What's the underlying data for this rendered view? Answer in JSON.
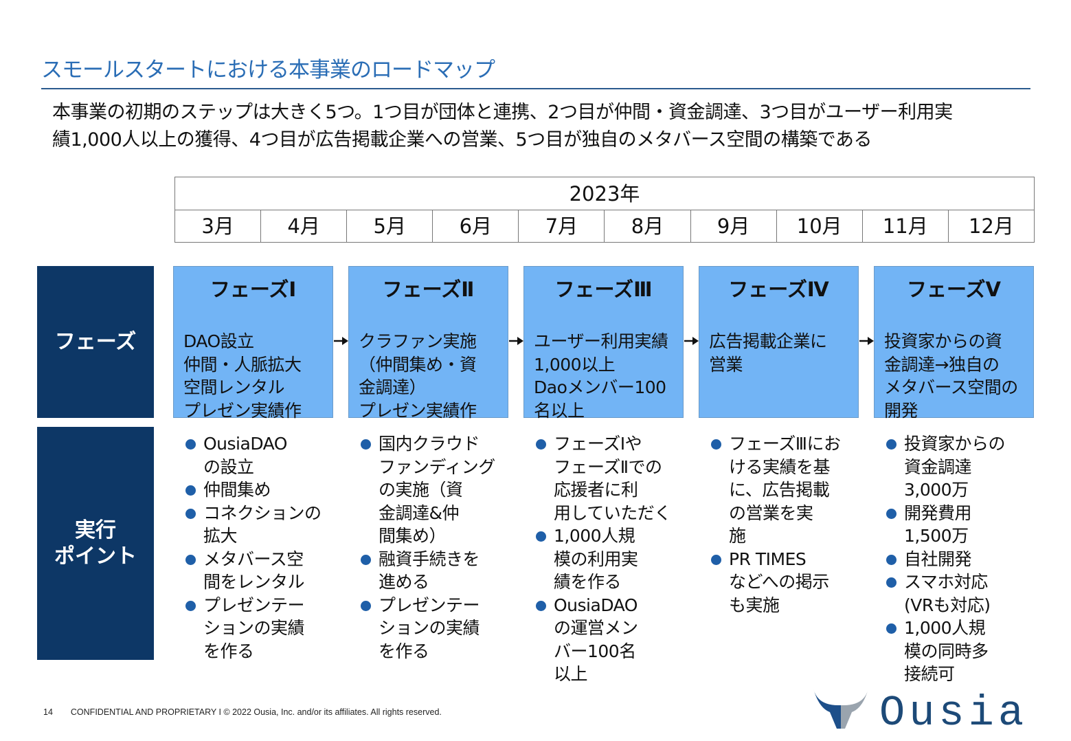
{
  "title": "スモールスタートにおける本事業のロードマップ",
  "intro": "本事業の初期のステップは大きく5つ。1つ目が団体と連携、2つ目が仲間・資金調達、3つ目がユーザー利用実\n績1,000人以上の獲得、4つ目が広告掲載企業への営業、5つ目が独自のメタバース空間の構築である",
  "timeline": {
    "year": "2023年",
    "months": [
      "3月",
      "4月",
      "5月",
      "6月",
      "7月",
      "8月",
      "9月",
      "10月",
      "11月",
      "12月"
    ]
  },
  "row_labels": {
    "phase": "フェーズ",
    "points": "実行\nポイント"
  },
  "phases": [
    {
      "name": "フェーズⅠ",
      "desc": "DAO設立\n仲間・人脈拡大\n空間レンタル\nプレゼン実績作",
      "points": [
        "OusiaDAO\nの設立",
        "仲間集め",
        "コネクションの\n拡大",
        "メタバース空\n間をレンタル",
        "プレゼンテー\nションの実績\nを作る"
      ]
    },
    {
      "name": "フェーズⅡ",
      "desc": "クラファン実施\n（仲間集め・資\n金調達）\nプレゼン実績作",
      "points": [
        "国内クラウド\nファンディング\nの実施（資\n金調達&仲\n間集め）",
        "融資手続きを\n進める",
        "プレゼンテー\nションの実績\nを作る"
      ]
    },
    {
      "name": "フェーズⅢ",
      "desc": "ユーザー利用実績\n1,000以上\nDaoメンバー100\n名以上",
      "points": [
        "フェーズⅠや\nフェーズⅡでの\n応援者に利\n用していただく",
        "1,000人規\n模の利用実\n績を作る",
        "OusiaDAO\nの運営メン\nバー100名\n以上"
      ]
    },
    {
      "name": "フェーズⅣ",
      "desc": "広告掲載企業に\n営業",
      "points": [
        "フェーズⅢにお\nける実績を基\nに、広告掲載\nの営業を実\n施",
        "PR TIMES\nなどへの掲示\nも実施"
      ]
    },
    {
      "name": "フェーズⅤ",
      "desc": "投資家からの資\n金調達→独自の\nメタバース空間の\n開発",
      "points": [
        "投資家からの\n資金調達\n3,000万",
        "開発費用\n1,500万",
        "自社開発",
        "スマホ対応\n(VRも対応)",
        "1,000人規\n模の同時多\n接続可"
      ]
    }
  ],
  "footer": {
    "page": "14",
    "text": "CONFIDENTIAL AND PROPRIETARY I © 2022 Ousia, Inc. and/or its affiliates. All rights reserved."
  },
  "logo": {
    "text": "Ousia"
  },
  "colors": {
    "navy": "#0d3766",
    "phase_box": "#72b4f5",
    "title": "#2a6db5",
    "bullet": "#1f5fa8"
  }
}
